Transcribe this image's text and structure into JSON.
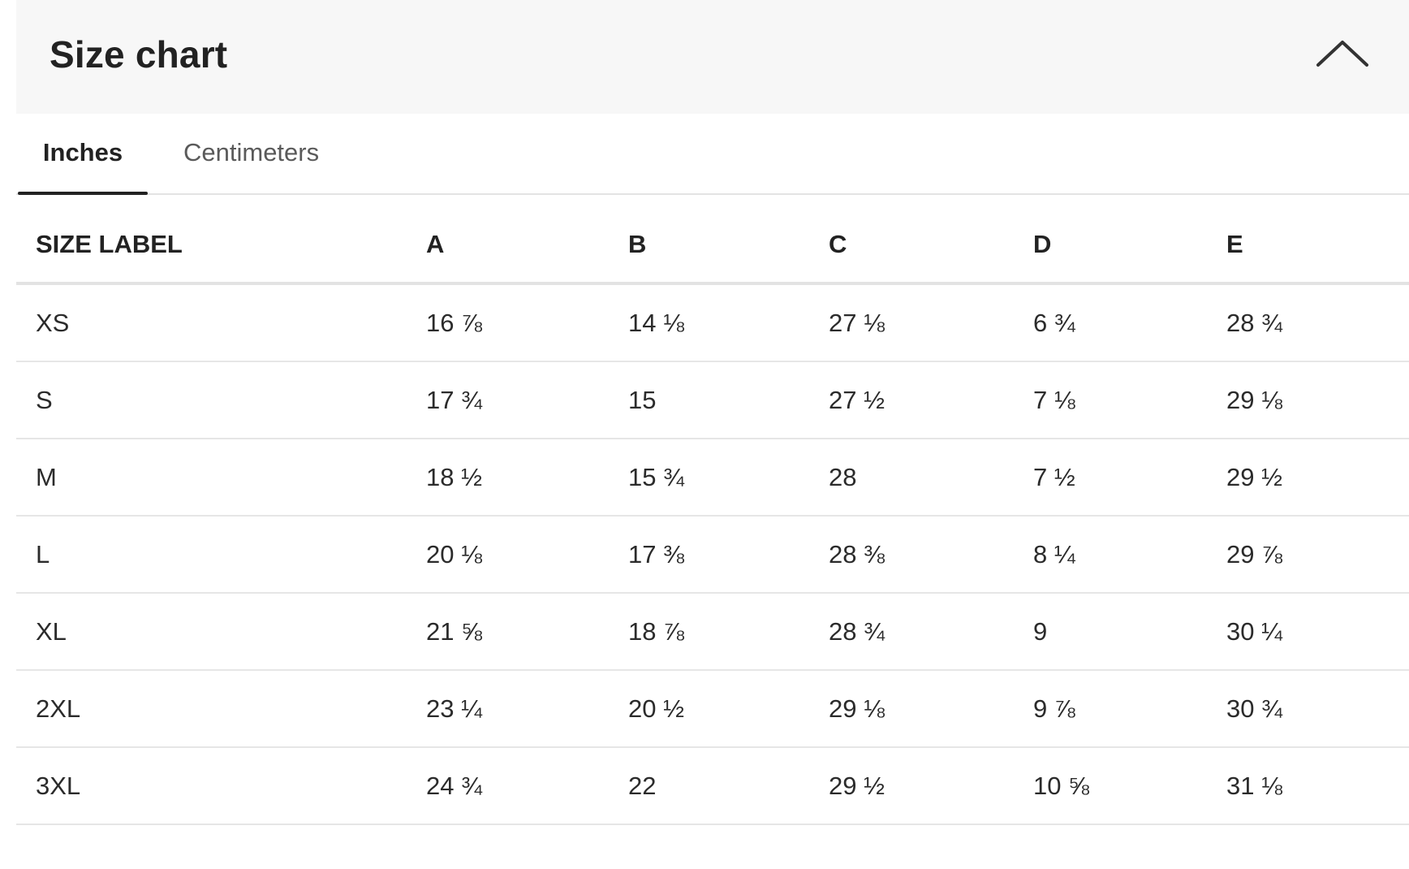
{
  "header": {
    "title": "Size chart",
    "collapse_icon": "chevron-up-icon"
  },
  "tabs": [
    {
      "label": "Inches",
      "active": true
    },
    {
      "label": "Centimeters",
      "active": false
    }
  ],
  "table": {
    "columns": [
      "SIZE LABEL",
      "A",
      "B",
      "C",
      "D",
      "E"
    ],
    "rows": [
      {
        "size": "XS",
        "a": "16 ⅞",
        "b": "14 ⅛",
        "c": "27 ⅛",
        "d": "6 ¾",
        "e": "28 ¾"
      },
      {
        "size": "S",
        "a": "17 ¾",
        "b": "15",
        "c": "27 ½",
        "d": "7 ⅛",
        "e": "29 ⅛"
      },
      {
        "size": "M",
        "a": "18 ½",
        "b": "15 ¾",
        "c": "28",
        "d": "7 ½",
        "e": "29 ½"
      },
      {
        "size": "L",
        "a": "20 ⅛",
        "b": "17 ⅜",
        "c": "28 ⅜",
        "d": "8 ¼",
        "e": "29 ⅞"
      },
      {
        "size": "XL",
        "a": "21 ⅝",
        "b": "18 ⅞",
        "c": "28 ¾",
        "d": "9",
        "e": "30 ¼"
      },
      {
        "size": "2XL",
        "a": "23 ¼",
        "b": "20 ½",
        "c": "29 ⅛",
        "d": "9 ⅞",
        "e": "30 ¾"
      },
      {
        "size": "3XL",
        "a": "24 ¾",
        "b": "22",
        "c": "29 ½",
        "d": "10 ⅝",
        "e": "31 ⅛"
      }
    ]
  }
}
